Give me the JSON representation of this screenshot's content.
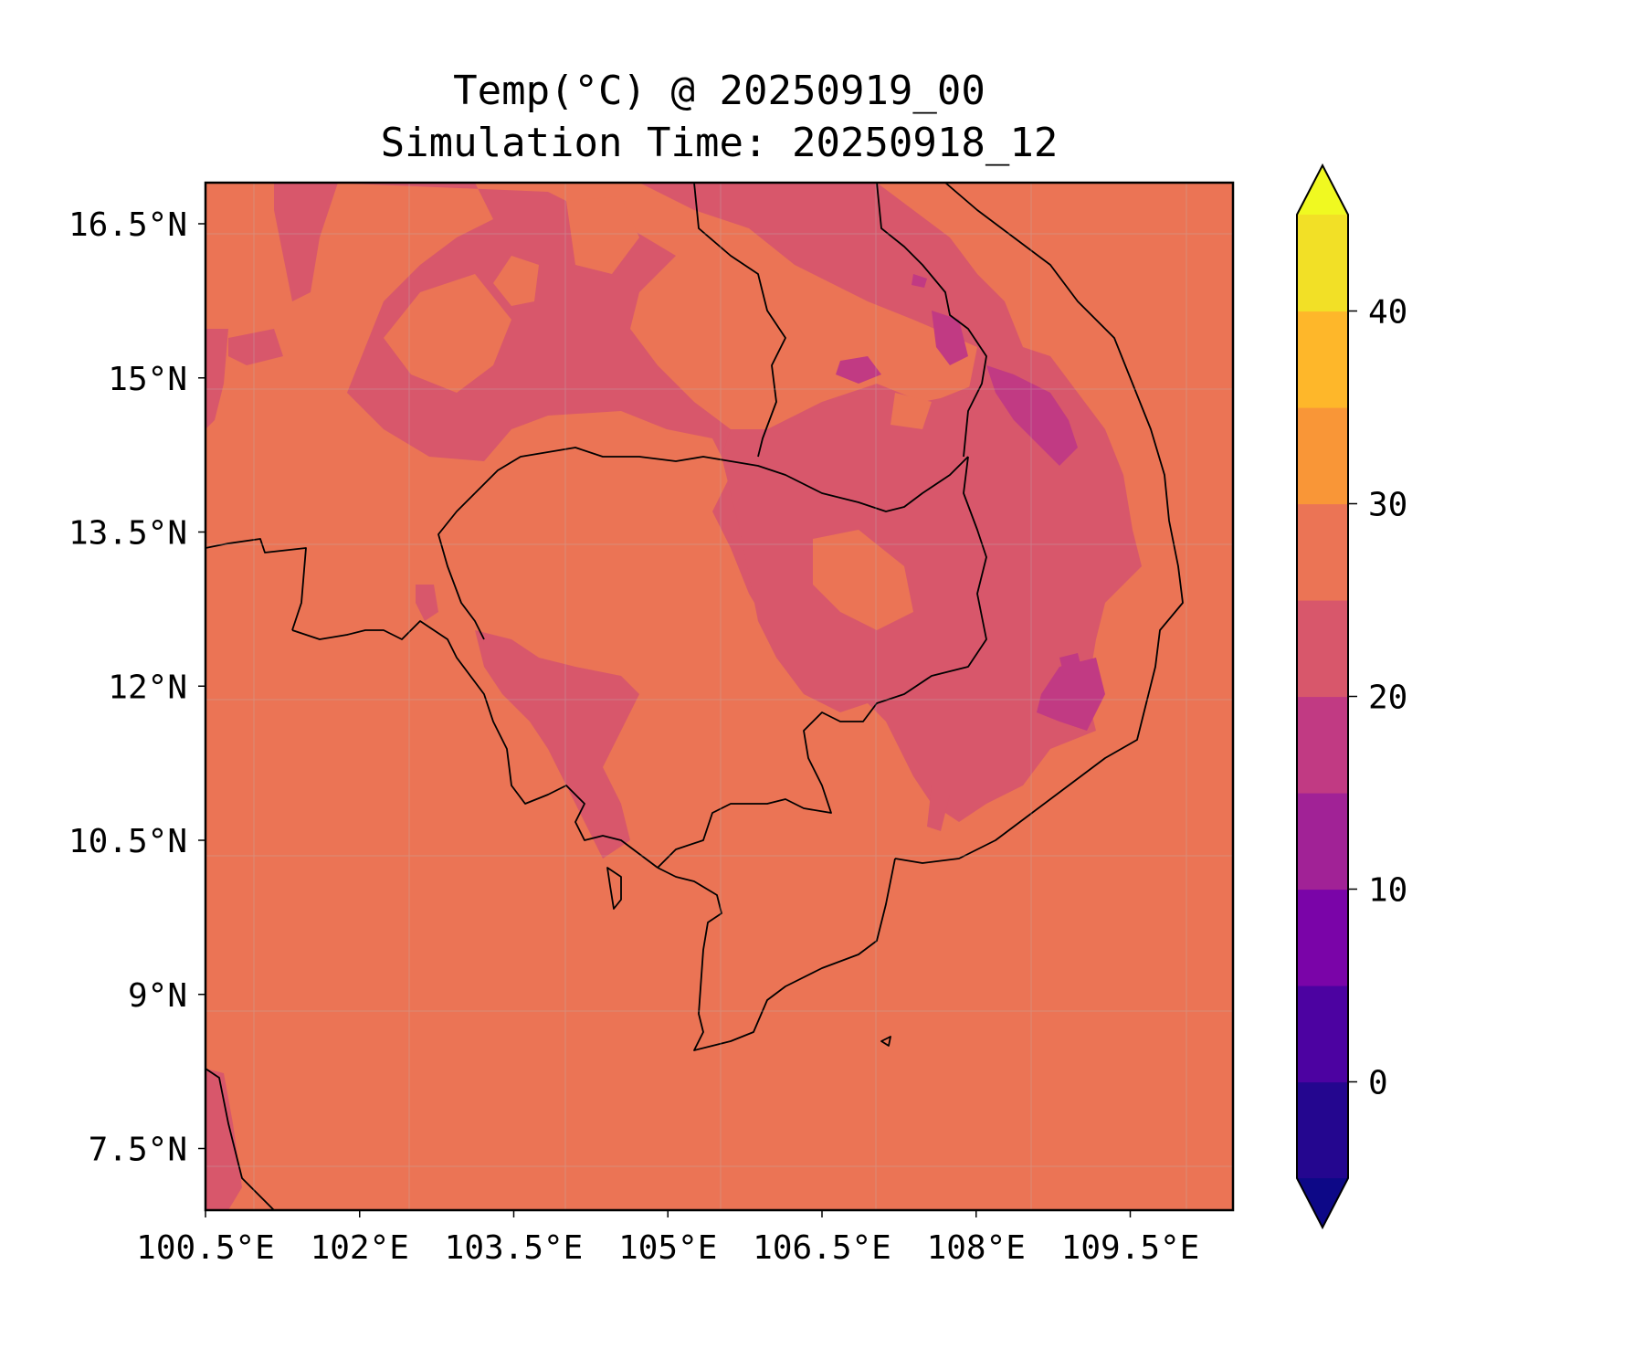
{
  "title": {
    "line1": "Temp(°C) @ 20250919_00",
    "line2": "Simulation Time: 20250918_12"
  },
  "chart_data": {
    "type": "filled-contour-map",
    "variable": "Temp(°C)",
    "extent": {
      "lon": [
        100.5,
        110.5
      ],
      "lat": [
        6.9,
        16.9
      ]
    },
    "lon_ticks": [
      "100.5°E",
      "102°E",
      "103.5°E",
      "105°E",
      "106.5°E",
      "108°E",
      "109.5°E"
    ],
    "lon_tick_values": [
      100.5,
      102.0,
      103.5,
      105.0,
      106.5,
      108.0,
      109.5
    ],
    "lat_ticks": [
      "16.5°N",
      "15°N",
      "13.5°N",
      "12°N",
      "10.5°N",
      "9°N",
      "7.5°N"
    ],
    "lat_tick_values": [
      16.5,
      15.0,
      13.5,
      12.0,
      10.5,
      9.0,
      7.5
    ],
    "dominant_value_range": [
      25,
      30
    ],
    "colorbar": {
      "levels": [
        -5,
        0,
        5,
        10,
        15,
        20,
        25,
        30,
        35,
        40,
        45
      ],
      "colors": [
        "#24068f",
        "#4c02a1",
        "#7a04a8",
        "#a12296",
        "#c13a83",
        "#d8576b",
        "#eb7455",
        "#f99637",
        "#feb72a",
        "#f2e026"
      ],
      "under_color": "#0d0887",
      "over_color": "#f0f921",
      "extend": "both",
      "tick_values": [
        0,
        10,
        20,
        30,
        40
      ],
      "tick_labels": [
        "0",
        "10",
        "20",
        "30",
        "40"
      ]
    }
  }
}
